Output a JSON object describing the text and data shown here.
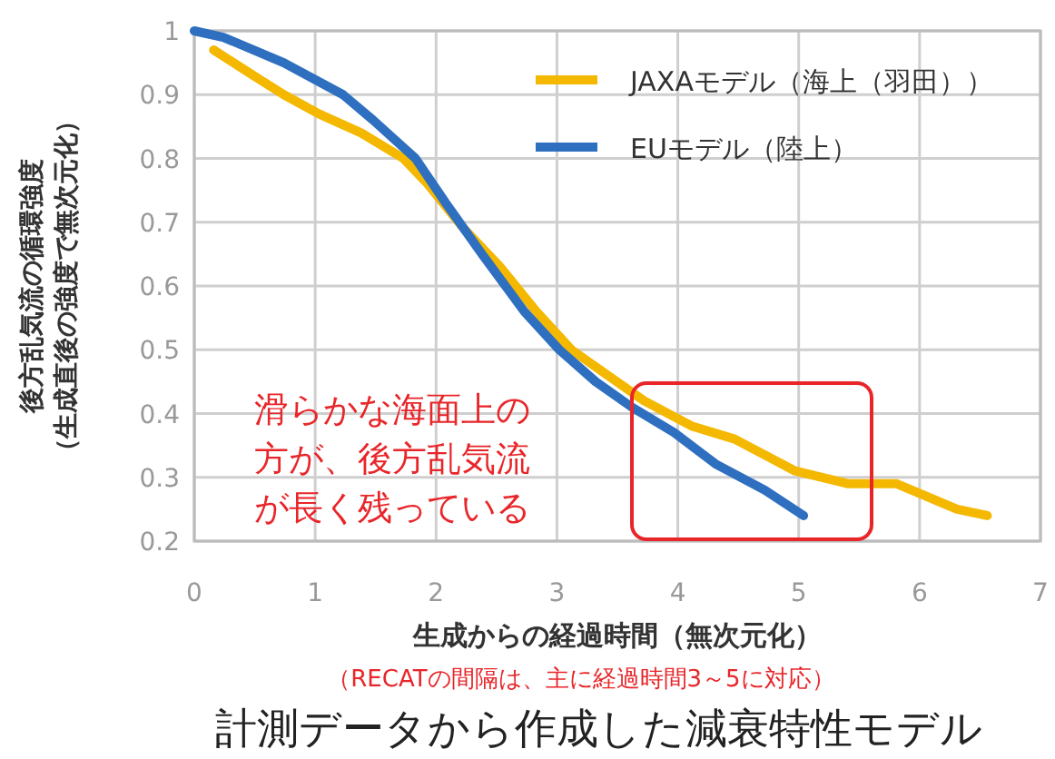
{
  "chart_data": {
    "type": "line",
    "xlabel": "生成からの経過時間（無次元化）",
    "ylabel": "後方乱気流の循環強度（生成直後の強度で無次元化）",
    "xlim": [
      0,
      7
    ],
    "xticks": [
      0,
      1,
      2,
      3,
      4,
      5,
      6,
      7
    ],
    "ylim": [
      0.2,
      1
    ],
    "yticks": [
      0.2,
      0.3,
      0.4,
      0.5,
      0.6,
      0.7,
      0.8,
      0.9,
      1
    ],
    "grid": true,
    "legend": "top right",
    "marker": "none",
    "line_style": "solid",
    "series": [
      {
        "name": "JAXAモデル（海上（羽田））",
        "color": "#f5b800",
        "x": [
          0.16,
          0.49,
          0.74,
          1.03,
          1.38,
          1.73,
          1.93,
          2.23,
          2.53,
          2.83,
          3.12,
          3.42,
          3.72,
          4.12,
          4.47,
          4.97,
          5.41,
          5.81,
          6.06,
          6.31,
          6.56
        ],
        "values": [
          0.97,
          0.93,
          0.9,
          0.87,
          0.84,
          0.8,
          0.76,
          0.69,
          0.63,
          0.56,
          0.5,
          0.46,
          0.42,
          0.38,
          0.36,
          0.31,
          0.29,
          0.29,
          0.27,
          0.25,
          0.24
        ]
      },
      {
        "name": "EUモデル（陸上）",
        "color": "#2e6fc0",
        "x": [
          0,
          0.24,
          0.74,
          1.23,
          1.48,
          1.83,
          2.08,
          2.38,
          2.73,
          3.02,
          3.32,
          3.62,
          3.97,
          4.32,
          4.72,
          5.04
        ],
        "values": [
          1,
          0.99,
          0.95,
          0.9,
          0.86,
          0.8,
          0.73,
          0.65,
          0.56,
          0.5,
          0.45,
          0.41,
          0.37,
          0.32,
          0.28,
          0.24
        ]
      }
    ],
    "annotations": [
      "滑らかな海面上の方が、後方乱気流が長く残っている",
      "（RECATの間隔は、主に経過時間3～5に対応）",
      "計測データから作成した減衰特性モデル"
    ]
  }
}
